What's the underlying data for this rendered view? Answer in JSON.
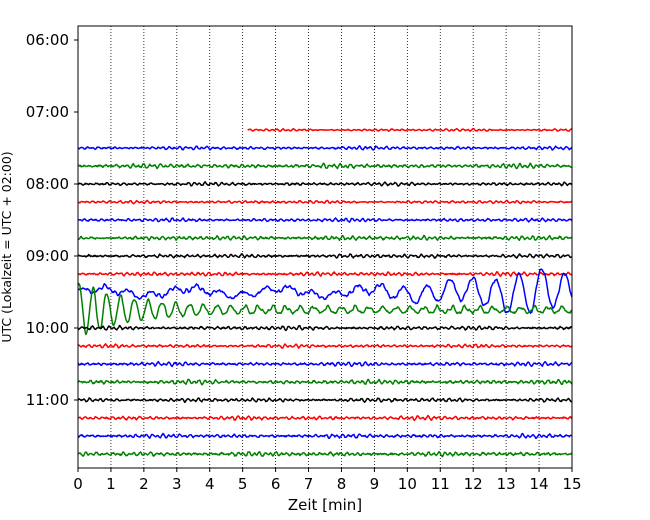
{
  "chart_data": {
    "type": "line",
    "title": "",
    "xlabel": "Zeit  [min]",
    "ylabel": "UTC (Lokalzeit = UTC + 02:00)",
    "xlim": [
      0,
      15
    ],
    "x_ticks": [
      "0",
      "1",
      "2",
      "3",
      "4",
      "5",
      "6",
      "7",
      "8",
      "9",
      "10",
      "11",
      "12",
      "13",
      "14",
      "15"
    ],
    "y_ticks": [
      "06:00",
      "07:00",
      "08:00",
      "09:00",
      "10:00",
      "11:00"
    ],
    "grid": "vertical dotted lines at every minute",
    "colors": [
      "#ff0000",
      "#0000ff",
      "#008000",
      "#000000"
    ],
    "series": [
      {
        "start": "07:15",
        "color": "#ff0000",
        "x_from": 5.15,
        "amplitude": 0.25
      },
      {
        "start": "07:30",
        "color": "#0000ff",
        "x_from": 0,
        "amplitude": 0.35
      },
      {
        "start": "07:45",
        "color": "#008000",
        "x_from": 0,
        "amplitude": 0.45
      },
      {
        "start": "08:00",
        "color": "#000000",
        "x_from": 0,
        "amplitude": 0.35
      },
      {
        "start": "08:15",
        "color": "#ff0000",
        "x_from": 0,
        "amplitude": 0.3
      },
      {
        "start": "08:30",
        "color": "#0000ff",
        "x_from": 0,
        "amplitude": 0.35
      },
      {
        "start": "08:45",
        "color": "#008000",
        "x_from": 0,
        "amplitude": 0.45
      },
      {
        "start": "09:00",
        "color": "#000000",
        "x_from": 0,
        "amplitude": 0.4
      },
      {
        "start": "09:15",
        "color": "#ff0000",
        "x_from": 0,
        "amplitude": 0.4
      },
      {
        "start": "09:30",
        "color": "#0000ff",
        "x_from": 0,
        "amplitude": 0.8,
        "event": "large low-frequency oscillations increasing after minute 8, peaks near 13-14"
      },
      {
        "start": "09:45",
        "color": "#008000",
        "x_from": 0,
        "amplitude": 0.9,
        "event": "strong oscillations at minute 0-1, decaying to minute 5"
      },
      {
        "start": "10:00",
        "color": "#000000",
        "x_from": 0,
        "amplitude": 0.4
      },
      {
        "start": "10:15",
        "color": "#ff0000",
        "x_from": 0,
        "amplitude": 0.35
      },
      {
        "start": "10:30",
        "color": "#0000ff",
        "x_from": 0,
        "amplitude": 0.4
      },
      {
        "start": "10:45",
        "color": "#008000",
        "x_from": 0,
        "amplitude": 0.45
      },
      {
        "start": "11:00",
        "color": "#000000",
        "x_from": 0,
        "amplitude": 0.4
      },
      {
        "start": "11:15",
        "color": "#ff0000",
        "x_from": 0,
        "amplitude": 0.4
      },
      {
        "start": "11:30",
        "color": "#0000ff",
        "x_from": 0,
        "amplitude": 0.4
      },
      {
        "start": "11:45",
        "color": "#008000",
        "x_from": 0,
        "amplitude": 0.45
      }
    ]
  }
}
